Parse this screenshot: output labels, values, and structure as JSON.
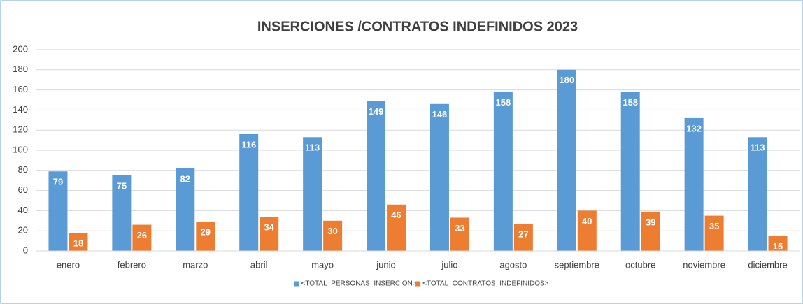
{
  "chart_data": {
    "type": "bar",
    "title": "INSERCIONES /CONTRATOS INDEFINIDOS 2023",
    "categories": [
      "enero",
      "febrero",
      "marzo",
      "abril",
      "mayo",
      "junio",
      "julio",
      "agosto",
      "septiembre",
      "octubre",
      "noviembre",
      "diciembre"
    ],
    "series": [
      {
        "name": "<TOTAL_PERSONAS_INSERCION>",
        "color": "#5b9bd5",
        "values": [
          79,
          75,
          82,
          116,
          113,
          149,
          146,
          158,
          180,
          158,
          132,
          113
        ]
      },
      {
        "name": "<TOTAL_CONTRATOS_INDEFINIDOS>",
        "color": "#ed7d31",
        "values": [
          18,
          26,
          29,
          34,
          30,
          46,
          33,
          27,
          40,
          39,
          35,
          15
        ]
      }
    ],
    "ylim": [
      0,
      200
    ],
    "yticks": [
      0,
      20,
      40,
      60,
      80,
      100,
      120,
      140,
      160,
      180,
      200
    ],
    "grid": true,
    "legend": "bottom"
  }
}
